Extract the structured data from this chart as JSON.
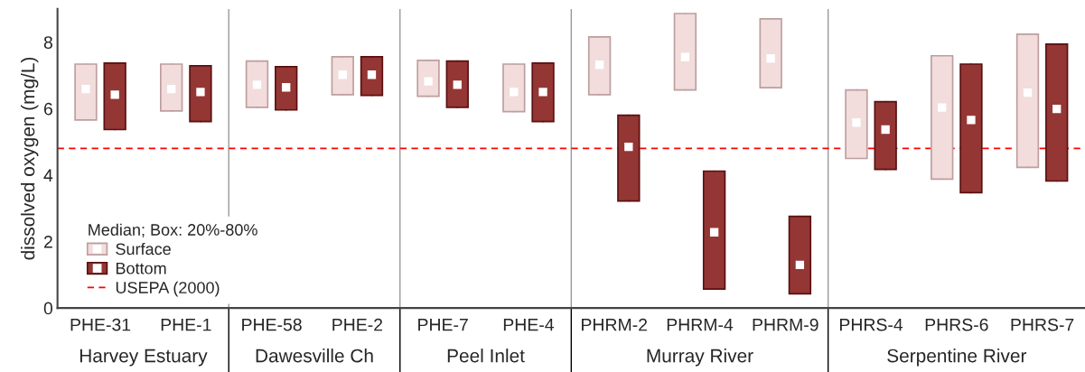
{
  "chart_data": {
    "type": "box",
    "ylabel": "dissolved oxygen (mg/L)",
    "legend_title": "Median; Box: 20%-80%",
    "legend": "bottom left",
    "grid": false,
    "marker": "square",
    "categories": [
      "PHE-31",
      "PHE-1",
      "PHE-58",
      "PHE-2",
      "PHE-7",
      "PHE-4",
      "PHRM-2",
      "PHRM-4",
      "PHRM-9",
      "PHRS-4",
      "PHRS-6",
      "PHRS-7"
    ],
    "ylim": [
      0,
      9
    ],
    "yticks": [
      0,
      2,
      4,
      6,
      8
    ],
    "series": [
      {
        "name": "Surface",
        "color": "#f2dcdc",
        "boxes": [
          {
            "low": 5.66,
            "q1": 5.66,
            "median": 6.59,
            "q3": 7.34,
            "high": 7.34
          },
          {
            "low": 5.93,
            "q1": 5.93,
            "median": 6.59,
            "q3": 7.34,
            "high": 7.34
          },
          {
            "low": 6.04,
            "q1": 6.04,
            "median": 6.72,
            "q3": 7.43,
            "high": 7.43
          },
          {
            "low": 6.42,
            "q1": 6.42,
            "median": 7.02,
            "q3": 7.56,
            "high": 7.56
          },
          {
            "low": 6.37,
            "q1": 6.37,
            "median": 6.82,
            "q3": 7.45,
            "high": 7.45
          },
          {
            "low": 5.91,
            "q1": 5.91,
            "median": 6.5,
            "q3": 7.34,
            "high": 7.34
          },
          {
            "low": 6.42,
            "q1": 6.42,
            "median": 7.32,
            "q3": 8.16,
            "high": 8.16
          },
          {
            "low": 6.56,
            "q1": 6.56,
            "median": 7.55,
            "q3": 8.86,
            "high": 8.86
          },
          {
            "low": 6.63,
            "q1": 6.63,
            "median": 7.51,
            "q3": 8.7,
            "high": 8.7
          },
          {
            "low": 4.5,
            "q1": 4.5,
            "median": 5.58,
            "q3": 6.56,
            "high": 6.56
          },
          {
            "low": 3.88,
            "q1": 3.88,
            "median": 6.03,
            "q3": 7.59,
            "high": 7.59
          },
          {
            "low": 4.23,
            "q1": 4.23,
            "median": 6.48,
            "q3": 8.24,
            "high": 8.24
          }
        ]
      },
      {
        "name": "Bottom",
        "color": "#943634",
        "boxes": [
          {
            "low": 5.37,
            "q1": 5.37,
            "median": 6.42,
            "q3": 7.37,
            "high": 7.37
          },
          {
            "low": 5.61,
            "q1": 5.61,
            "median": 6.5,
            "q3": 7.29,
            "high": 7.29
          },
          {
            "low": 5.96,
            "q1": 5.96,
            "median": 6.64,
            "q3": 7.26,
            "high": 7.26
          },
          {
            "low": 6.4,
            "q1": 6.4,
            "median": 7.02,
            "q3": 7.56,
            "high": 7.56
          },
          {
            "low": 6.04,
            "q1": 6.04,
            "median": 6.72,
            "q3": 7.43,
            "high": 7.43
          },
          {
            "low": 5.61,
            "q1": 5.61,
            "median": 6.5,
            "q3": 7.37,
            "high": 7.37
          },
          {
            "low": 3.22,
            "q1": 3.22,
            "median": 4.85,
            "q3": 5.8,
            "high": 5.8
          },
          {
            "low": 0.57,
            "q1": 0.57,
            "median": 2.28,
            "q3": 4.12,
            "high": 4.12
          },
          {
            "low": 0.43,
            "q1": 0.43,
            "median": 1.3,
            "q3": 2.76,
            "high": 2.76
          },
          {
            "low": 4.17,
            "q1": 4.17,
            "median": 5.37,
            "q3": 6.21,
            "high": 6.21
          },
          {
            "low": 3.47,
            "q1": 3.47,
            "median": 5.66,
            "q3": 7.34,
            "high": 7.34
          },
          {
            "low": 3.82,
            "q1": 3.82,
            "median": 5.99,
            "q3": 7.94,
            "high": 7.94
          }
        ]
      }
    ],
    "ref_lines": [
      {
        "axis": "y",
        "value": 4.8,
        "label": "USEPA (2000)",
        "color": "#ff0000",
        "line_style": "dashed"
      }
    ],
    "annotations": [
      "Harvey Estuary",
      "Dawesville Ch",
      "Peel Inlet",
      "Murray River",
      "Serpentine River"
    ]
  }
}
